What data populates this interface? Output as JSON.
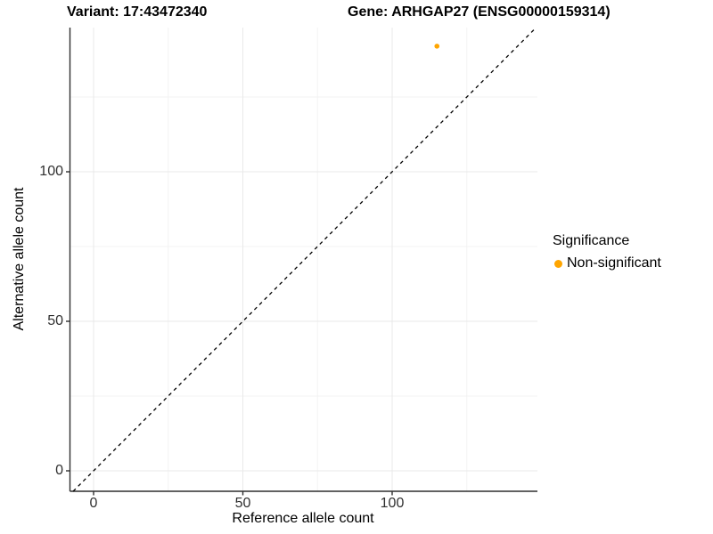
{
  "chart_data": {
    "type": "scatter",
    "title_left": "Variant: 17:43472340",
    "title_right": "Gene: ARHGAP27 (ENSG00000159314)",
    "xlabel": "Reference allele count",
    "ylabel": "Alternative allele count",
    "xlim": [
      -8,
      149
    ],
    "ylim": [
      -7,
      148
    ],
    "x_ticks": [
      0,
      50,
      100
    ],
    "y_ticks": [
      0,
      50,
      100
    ],
    "x_minor_gridlines": [
      25,
      75,
      125
    ],
    "y_minor_gridlines": [
      25,
      75,
      125
    ],
    "grid": true,
    "panel_background": "#ffffff",
    "identity_line": {
      "slope": 1,
      "intercept": 0,
      "style": "dashed",
      "color": "#000000"
    },
    "series": [
      {
        "name": "Non-significant",
        "color": "#FFA500",
        "points": [
          {
            "x": 115,
            "y": 142
          }
        ]
      }
    ],
    "legend": {
      "title": "Significance",
      "position": "right",
      "items": [
        {
          "label": "Non-significant",
          "color": "#FFA500"
        }
      ]
    }
  }
}
